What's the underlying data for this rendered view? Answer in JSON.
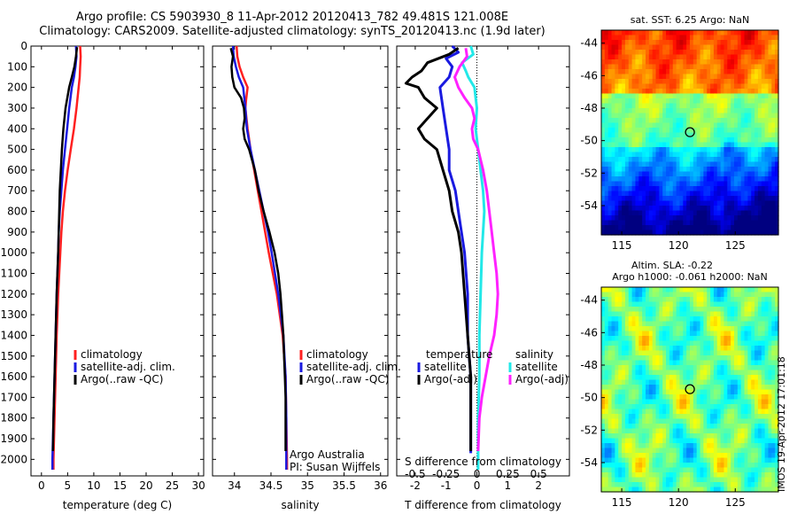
{
  "title": {
    "line1": "Argo profile: CS 5903930_8 11-Apr-2012 20120413_782 49.481S 121.008E",
    "line2": "Climatology: CARS2009. Satellite-adjusted climatology: synTS_20120413.nc (1.9d later)"
  },
  "stamp": "IMOS 19-Apr-2012 17:01:18",
  "colors": {
    "climatology": "#ff2020",
    "satellite": "#1a1ae0",
    "argo": "#000000",
    "salinity_satellite": "#22e8e8",
    "salinity_argo": "#ff22ff"
  },
  "chart_data": [
    {
      "type": "line",
      "xlabel": "temperature (deg C)",
      "ylabel": "",
      "xlim": [
        -2,
        31
      ],
      "ylim": [
        2080,
        0
      ],
      "xticks": [
        0,
        5,
        10,
        15,
        20,
        25,
        30
      ],
      "yticks": [
        0,
        100,
        200,
        300,
        400,
        500,
        600,
        700,
        800,
        900,
        1000,
        1100,
        1200,
        1300,
        1400,
        1500,
        1600,
        1700,
        1800,
        1900,
        2000
      ],
      "legend": [
        "climatology",
        "satellite-adj. clim.",
        "Argo(..raw -QC)"
      ],
      "legend_position": "lower-right",
      "series": [
        {
          "name": "climatology",
          "depth": [
            0,
            50,
            100,
            150,
            200,
            300,
            400,
            500,
            600,
            700,
            800,
            900,
            1000,
            1200,
            1400,
            1600,
            1800,
            2000,
            2050
          ],
          "values": [
            7.4,
            7.5,
            7.4,
            7.3,
            7.1,
            6.7,
            6.2,
            5.6,
            5.0,
            4.5,
            4.1,
            3.8,
            3.6,
            3.2,
            2.9,
            2.7,
            2.5,
            2.3,
            2.3
          ]
        },
        {
          "name": "satellite-adj. clim.",
          "depth": [
            0,
            50,
            100,
            150,
            200,
            300,
            400,
            500,
            600,
            700,
            800,
            900,
            1000,
            1200,
            1400,
            1600,
            1800,
            2000,
            2050
          ],
          "values": [
            6.6,
            6.7,
            6.5,
            6.2,
            5.8,
            5.3,
            4.9,
            4.5,
            4.1,
            3.8,
            3.5,
            3.3,
            3.2,
            2.9,
            2.7,
            2.5,
            2.3,
            2.1,
            2.1
          ]
        },
        {
          "name": "Argo(..raw -QC)",
          "depth": [
            5,
            50,
            100,
            150,
            200,
            300,
            400,
            500,
            600,
            700,
            800,
            900,
            1000,
            1200,
            1400,
            1600,
            1800,
            1960
          ],
          "values": [
            6.8,
            6.6,
            6.3,
            5.8,
            5.3,
            4.6,
            4.2,
            3.9,
            3.7,
            3.5,
            3.4,
            3.3,
            3.2,
            2.9,
            2.7,
            2.5,
            2.3,
            2.2
          ]
        }
      ]
    },
    {
      "type": "line",
      "xlabel": "salinity",
      "ylabel": "",
      "xlim": [
        33.7,
        36.1
      ],
      "ylim": [
        2080,
        0
      ],
      "xticks": [
        34,
        34.5,
        35,
        35.5,
        36
      ],
      "legend": [
        "climatology",
        "satellite-adj. clim.",
        "Argo(..raw -QC)"
      ],
      "legend_position": "lower-right",
      "annotation": [
        "Argo Australia",
        "PI: Susan Wijffels"
      ],
      "series": [
        {
          "name": "climatology",
          "depth": [
            0,
            50,
            100,
            150,
            200,
            260,
            300,
            400,
            500,
            600,
            700,
            800,
            900,
            1000,
            1200,
            1400,
            1600,
            1800,
            2000,
            2050
          ],
          "values": [
            34.03,
            34.04,
            34.07,
            34.12,
            34.18,
            34.16,
            34.15,
            34.18,
            34.22,
            34.27,
            34.32,
            34.37,
            34.42,
            34.47,
            34.58,
            34.66,
            34.7,
            34.71,
            34.72,
            34.72
          ]
        },
        {
          "name": "satellite-adj. clim.",
          "depth": [
            0,
            50,
            100,
            150,
            200,
            300,
            400,
            500,
            600,
            700,
            800,
            900,
            1000,
            1200,
            1400,
            1600,
            1800,
            2000,
            2050
          ],
          "values": [
            33.98,
            33.99,
            34.02,
            34.06,
            34.12,
            34.15,
            34.17,
            34.22,
            34.28,
            34.34,
            34.4,
            34.46,
            34.51,
            34.6,
            34.67,
            34.7,
            34.71,
            34.71,
            34.71
          ]
        },
        {
          "name": "Argo(..raw -QC)",
          "depth": [
            10,
            50,
            100,
            150,
            200,
            250,
            300,
            350,
            400,
            450,
            500,
            600,
            700,
            800,
            900,
            1000,
            1100,
            1200,
            1300,
            1400,
            1500,
            1600,
            1700,
            1800,
            1960
          ],
          "values": [
            33.95,
            33.98,
            33.96,
            33.97,
            34.0,
            34.09,
            34.13,
            34.14,
            34.12,
            34.14,
            34.2,
            34.28,
            34.33,
            34.4,
            34.48,
            34.55,
            34.6,
            34.63,
            34.65,
            34.67,
            34.68,
            34.69,
            34.7,
            34.7,
            34.7
          ]
        }
      ]
    },
    {
      "type": "line",
      "xlabel": "T difference from climatology",
      "x2label": "S difference from climatology",
      "ylabel": "",
      "xlim": [
        -2.6,
        3.0
      ],
      "x2lim": [
        -0.65,
        0.75
      ],
      "ylim": [
        2080,
        0
      ],
      "xticks": [
        -2,
        -1,
        0,
        1,
        2
      ],
      "x2ticks": [
        "-0.5",
        "-0.25",
        "0",
        "0.25",
        "0.5"
      ],
      "x2tick_values": [
        -0.5,
        -0.25,
        0,
        0.25,
        0.5
      ],
      "legend_groups": [
        {
          "title": "temperature",
          "entries": [
            "satellite",
            "Argo(-adj)"
          ]
        },
        {
          "title": "salinity",
          "entries": [
            "satellite",
            "Argo(-adj)"
          ]
        }
      ],
      "series": [
        {
          "name": "temperature satellite",
          "depth": [
            0,
            30,
            60,
            80,
            100,
            150,
            200,
            300,
            400,
            500,
            600,
            700,
            800,
            900,
            1000,
            1200,
            1400,
            1600,
            1800,
            1970
          ],
          "values": [
            -0.8,
            -0.6,
            -1.0,
            -0.9,
            -0.8,
            -0.9,
            -1.2,
            -1.1,
            -1.0,
            -0.9,
            -0.9,
            -0.7,
            -0.6,
            -0.5,
            -0.4,
            -0.3,
            -0.3,
            -0.2,
            -0.2,
            -0.2
          ]
        },
        {
          "name": "temperature Argo(-adj)",
          "depth": [
            10,
            40,
            80,
            120,
            150,
            180,
            200,
            250,
            300,
            350,
            400,
            450,
            500,
            600,
            700,
            800,
            900,
            1000,
            1200,
            1400,
            1600,
            1800,
            1960
          ],
          "values": [
            -0.6,
            -0.9,
            -1.6,
            -1.8,
            -2.1,
            -2.3,
            -1.9,
            -1.7,
            -1.3,
            -1.6,
            -1.9,
            -1.7,
            -1.3,
            -1.1,
            -0.9,
            -0.8,
            -0.6,
            -0.5,
            -0.4,
            -0.3,
            -0.2,
            -0.2,
            -0.2
          ]
        },
        {
          "name": "salinity satellite",
          "depth": [
            0,
            40,
            80,
            120,
            150,
            200,
            300,
            400,
            500,
            600,
            700,
            800,
            900,
            1000,
            1200,
            1400,
            1600,
            1800,
            2000,
            2050
          ],
          "values": [
            -0.05,
            -0.03,
            -0.12,
            -0.09,
            -0.07,
            -0.02,
            0.0,
            -0.01,
            0.01,
            0.03,
            0.05,
            0.06,
            0.05,
            0.04,
            0.03,
            0.02,
            0.02,
            0.01,
            0.01,
            0.01
          ]
        },
        {
          "name": "salinity Argo(-adj)",
          "depth": [
            10,
            50,
            100,
            150,
            200,
            250,
            300,
            350,
            400,
            450,
            500,
            600,
            700,
            800,
            900,
            1000,
            1100,
            1200,
            1300,
            1400,
            1500,
            1600,
            1700,
            1800,
            1960
          ],
          "values": [
            -0.09,
            -0.08,
            -0.14,
            -0.18,
            -0.15,
            -0.1,
            -0.04,
            -0.02,
            -0.04,
            -0.03,
            0.01,
            0.05,
            0.08,
            0.1,
            0.12,
            0.14,
            0.16,
            0.17,
            0.16,
            0.14,
            0.1,
            0.07,
            0.04,
            0.02,
            0.01
          ]
        }
      ]
    },
    {
      "type": "heatmap",
      "title": "sat. SST: 6.25  Argo: NaN",
      "xticks": [
        115,
        120,
        125
      ],
      "yticks": [
        -44,
        -46,
        -48,
        -50,
        -52,
        -54
      ],
      "xlim": [
        113.2,
        128.8
      ],
      "ylim": [
        -55.8,
        -43.2
      ],
      "marker": {
        "lon": 121.008,
        "lat": -49.481
      },
      "colormap": "jet"
    },
    {
      "type": "heatmap",
      "title": [
        "Altim. SLA: -0.22",
        "Argo h1000: -0.061  h2000: NaN"
      ],
      "xticks": [
        115,
        120,
        125
      ],
      "yticks": [
        -44,
        -46,
        -48,
        -50,
        -52,
        -54
      ],
      "xlim": [
        113.2,
        128.8
      ],
      "ylim": [
        -55.8,
        -43.2
      ],
      "marker": {
        "lon": 121.008,
        "lat": -49.481
      },
      "colormap": "jet"
    }
  ]
}
